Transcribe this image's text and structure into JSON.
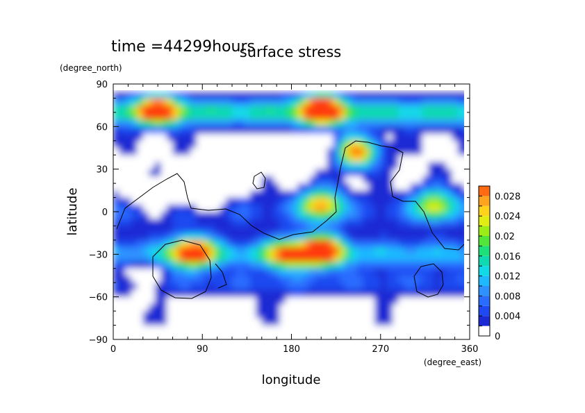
{
  "chart_data": {
    "type": "heatmap",
    "title": "surface stress",
    "time_label": "time =44299hours",
    "xlabel": "longitude",
    "ylabel": "latitude",
    "x_unit": "(degree_east)",
    "y_unit": "(degree_north)",
    "xlim": [
      0,
      360
    ],
    "ylim": [
      -90,
      90
    ],
    "x_ticks": [
      "0",
      "90",
      "180",
      "270",
      "360"
    ],
    "y_ticks": [
      "90",
      "60",
      "30",
      "0",
      "−30",
      "−60",
      "−90"
    ],
    "colorbar": {
      "range": [
        0,
        0.03
      ],
      "tick_labels": [
        "0.028",
        "0.024",
        "0.02",
        "0.016",
        "0.012",
        "0.008",
        "0.004",
        "0"
      ],
      "levels": [
        0,
        0.002,
        0.004,
        0.006,
        0.008,
        0.01,
        0.012,
        0.014,
        0.016,
        0.018,
        0.02,
        0.022,
        0.024,
        0.026,
        0.028,
        0.03
      ],
      "colors": [
        "#ffffff",
        "#1c2ad4",
        "#1f48f0",
        "#2a6cff",
        "#2f91ff",
        "#1fb8ff",
        "#12d8e8",
        "#10d9b2",
        "#1ee07a",
        "#52e63a",
        "#9cec18",
        "#e0ec14",
        "#ffd21c",
        "#ffa41e",
        "#ff6a12",
        "#ff3a0a"
      ]
    },
    "lat_band_peaks": [
      {
        "lat": 70,
        "value": 0.014
      },
      {
        "lat": 0,
        "value": 0.004
      },
      {
        "lat": -30,
        "value": 0.01
      },
      {
        "lat": -50,
        "value": 0.004
      }
    ],
    "hotspots": [
      {
        "lon": 45,
        "lat": 72,
        "value": 0.024
      },
      {
        "lon": 210,
        "lat": 72,
        "value": 0.03
      },
      {
        "lon": 245,
        "lat": 42,
        "value": 0.028
      },
      {
        "lon": 210,
        "lat": 5,
        "value": 0.024
      },
      {
        "lon": 325,
        "lat": 5,
        "value": 0.02
      },
      {
        "lon": 80,
        "lat": -28,
        "value": 0.028
      },
      {
        "lon": 210,
        "lat": -27,
        "value": 0.03
      },
      {
        "lon": 175,
        "lat": -30,
        "value": 0.02
      }
    ],
    "calm_regions": [
      {
        "lon": 120,
        "lat": 40
      },
      {
        "lon": 170,
        "lat": 40
      },
      {
        "lon": 210,
        "lat": 45
      },
      {
        "lon": 90,
        "lat": 10
      },
      {
        "lon": 40,
        "lat": 10
      },
      {
        "lon": 25,
        "lat": -45
      },
      {
        "lon": 100,
        "lat": -75
      },
      {
        "lon": 230,
        "lat": -75
      },
      {
        "lon": 320,
        "lat": -78
      }
    ],
    "grid": false
  }
}
